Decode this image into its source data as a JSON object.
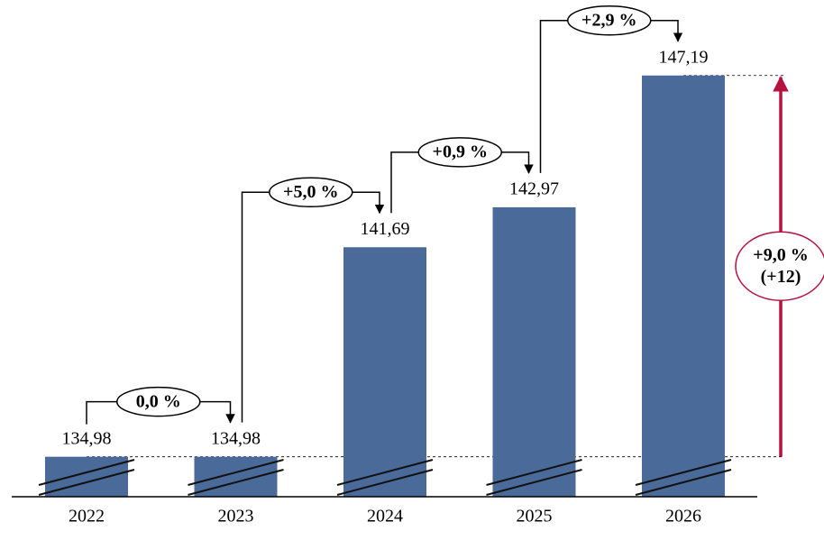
{
  "chart_data": {
    "type": "bar",
    "categories": [
      "2022",
      "2023",
      "2024",
      "2025",
      "2026"
    ],
    "values": [
      134.98,
      134.98,
      141.69,
      142.97,
      147.19
    ],
    "value_labels": [
      "134,98",
      "134,98",
      "141,69",
      "142,97",
      "147,19"
    ],
    "color": "#4a6a99",
    "ylim": [
      133.7,
      147.5
    ],
    "changes": [
      "0,0 %",
      "+5,0 %",
      "+0,9 %",
      "+2,9 %"
    ],
    "total_change": [
      "+9,0 %",
      "(+12)"
    ],
    "total_color": "#b5123f"
  }
}
